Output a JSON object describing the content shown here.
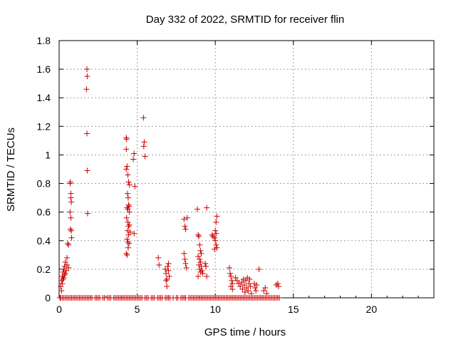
{
  "chart_data": {
    "type": "scatter",
    "title": "Day 332 of 2022, SRMTID for receiver flin",
    "xlabel": "GPS time / hours",
    "ylabel": "SRMTID / TECUs",
    "xlim": [
      0,
      24
    ],
    "ylim": [
      0,
      1.8
    ],
    "xticks": [
      0,
      5,
      10,
      15,
      20
    ],
    "xtick_labels": [
      "0",
      "5",
      "10",
      "15",
      "20"
    ],
    "yticks": [
      0,
      0.2,
      0.4,
      0.6,
      0.8,
      1,
      1.2,
      1.4,
      1.6,
      1.8
    ],
    "ytick_labels": [
      "0",
      "0.2",
      "0.4",
      "0.6",
      "0.8",
      "1",
      "1.2",
      "1.4",
      "1.6",
      "1.8"
    ],
    "grid": true,
    "marker": "+",
    "color": "#cc0000",
    "series": [
      {
        "name": "SRMTID",
        "points": [
          [
            0.1,
            0.08
          ],
          [
            0.15,
            0.12
          ],
          [
            0.2,
            0.15
          ],
          [
            0.2,
            0.1
          ],
          [
            0.25,
            0.18
          ],
          [
            0.3,
            0.2
          ],
          [
            0.3,
            0.14
          ],
          [
            0.35,
            0.22
          ],
          [
            0.4,
            0.17
          ],
          [
            0.4,
            0.25
          ],
          [
            0.45,
            0.19
          ],
          [
            0.5,
            0.23
          ],
          [
            0.5,
            0.28
          ],
          [
            0.55,
            0.38
          ],
          [
            0.6,
            0.37
          ],
          [
            0.6,
            0.21
          ],
          [
            0.15,
            0.05
          ],
          [
            0.25,
            0.13
          ],
          [
            0.35,
            0.16
          ],
          [
            0.7,
            0.8
          ],
          [
            0.72,
            0.81
          ],
          [
            0.75,
            0.73
          ],
          [
            0.75,
            0.7
          ],
          [
            0.78,
            0.67
          ],
          [
            0.7,
            0.6
          ],
          [
            0.75,
            0.56
          ],
          [
            0.72,
            0.48
          ],
          [
            0.78,
            0.47
          ],
          [
            0.8,
            0.42
          ],
          [
            1.78,
            1.6
          ],
          [
            1.8,
            1.55
          ],
          [
            1.75,
            1.46
          ],
          [
            1.78,
            1.15
          ],
          [
            1.8,
            0.89
          ],
          [
            1.82,
            0.59
          ],
          [
            4.3,
            1.12
          ],
          [
            4.32,
            1.11
          ],
          [
            4.3,
            1.04
          ],
          [
            4.35,
            0.92
          ],
          [
            4.3,
            0.9
          ],
          [
            4.4,
            0.86
          ],
          [
            4.45,
            0.81
          ],
          [
            4.5,
            0.79
          ],
          [
            4.38,
            0.73
          ],
          [
            4.42,
            0.7
          ],
          [
            4.45,
            0.65
          ],
          [
            4.48,
            0.64
          ],
          [
            4.35,
            0.63
          ],
          [
            4.4,
            0.62
          ],
          [
            4.5,
            0.6
          ],
          [
            4.32,
            0.56
          ],
          [
            4.4,
            0.53
          ],
          [
            4.45,
            0.5
          ],
          [
            4.5,
            0.51
          ],
          [
            4.38,
            0.47
          ],
          [
            4.45,
            0.44
          ],
          [
            4.35,
            0.41
          ],
          [
            4.4,
            0.39
          ],
          [
            4.48,
            0.38
          ],
          [
            4.42,
            0.35
          ],
          [
            4.3,
            0.31
          ],
          [
            4.35,
            0.3
          ],
          [
            4.55,
            0.46
          ],
          [
            4.8,
            1.01
          ],
          [
            4.75,
            0.97
          ],
          [
            4.85,
            0.78
          ],
          [
            4.8,
            0.45
          ],
          [
            5.4,
            1.26
          ],
          [
            5.45,
            1.09
          ],
          [
            5.42,
            1.06
          ],
          [
            5.5,
            0.99
          ],
          [
            6.35,
            0.28
          ],
          [
            6.4,
            0.23
          ],
          [
            6.8,
            0.2
          ],
          [
            6.85,
            0.17
          ],
          [
            6.9,
            0.13
          ],
          [
            6.95,
            0.22
          ],
          [
            7.0,
            0.24
          ],
          [
            7.05,
            0.15
          ],
          [
            6.9,
            0.08
          ],
          [
            7.0,
            0.19
          ],
          [
            6.85,
            0.12
          ],
          [
            8.0,
            0.55
          ],
          [
            8.05,
            0.5
          ],
          [
            8.1,
            0.48
          ],
          [
            8.0,
            0.31
          ],
          [
            8.05,
            0.27
          ],
          [
            8.1,
            0.24
          ],
          [
            8.15,
            0.21
          ],
          [
            8.2,
            0.56
          ],
          [
            8.85,
            0.62
          ],
          [
            8.9,
            0.44
          ],
          [
            8.95,
            0.43
          ],
          [
            9.0,
            0.37
          ],
          [
            9.05,
            0.33
          ],
          [
            9.1,
            0.31
          ],
          [
            8.9,
            0.29
          ],
          [
            9.0,
            0.27
          ],
          [
            9.05,
            0.25
          ],
          [
            8.95,
            0.23
          ],
          [
            9.1,
            0.22
          ],
          [
            9.0,
            0.2
          ],
          [
            9.05,
            0.18
          ],
          [
            9.15,
            0.19
          ],
          [
            9.2,
            0.17
          ],
          [
            8.9,
            0.15
          ],
          [
            9.35,
            0.24
          ],
          [
            9.4,
            0.22
          ],
          [
            9.45,
            0.63
          ],
          [
            9.45,
            0.15
          ],
          [
            9.8,
            0.44
          ],
          [
            9.85,
            0.43
          ],
          [
            9.95,
            0.42
          ],
          [
            10.0,
            0.47
          ],
          [
            10.05,
            0.45
          ],
          [
            10.1,
            0.57
          ],
          [
            10.05,
            0.53
          ],
          [
            10.0,
            0.4
          ],
          [
            10.05,
            0.37
          ],
          [
            10.1,
            0.35
          ],
          [
            9.95,
            0.34
          ],
          [
            10.9,
            0.21
          ],
          [
            10.95,
            0.17
          ],
          [
            11.0,
            0.15
          ],
          [
            11.05,
            0.12
          ],
          [
            11.1,
            0.1
          ],
          [
            11.0,
            0.08
          ],
          [
            11.1,
            0.06
          ],
          [
            11.3,
            0.14
          ],
          [
            11.4,
            0.12
          ],
          [
            11.5,
            0.1
          ],
          [
            11.6,
            0.08
          ],
          [
            11.7,
            0.11
          ],
          [
            11.75,
            0.06
          ],
          [
            11.8,
            0.13
          ],
          [
            11.85,
            0.09
          ],
          [
            11.9,
            0.04
          ],
          [
            11.95,
            0.12
          ],
          [
            12.0,
            0.07
          ],
          [
            12.05,
            0.14
          ],
          [
            12.1,
            0.05
          ],
          [
            12.15,
            0.1
          ],
          [
            12.2,
            0.13
          ],
          [
            12.25,
            0.08
          ],
          [
            12.3,
            0.03
          ],
          [
            12.5,
            0.1
          ],
          [
            12.55,
            0.07
          ],
          [
            12.6,
            0.05
          ],
          [
            12.65,
            0.09
          ],
          [
            12.8,
            0.2
          ],
          [
            13.1,
            0.05
          ],
          [
            13.2,
            0.07
          ],
          [
            13.3,
            0.03
          ],
          [
            13.9,
            0.09
          ],
          [
            14.0,
            0.1
          ],
          [
            14.05,
            0.08
          ],
          [
            0.05,
            0
          ],
          [
            0.1,
            0
          ],
          [
            0.2,
            0
          ],
          [
            0.3,
            0
          ],
          [
            0.4,
            0
          ],
          [
            0.5,
            0
          ],
          [
            0.6,
            0
          ],
          [
            0.7,
            0
          ],
          [
            0.8,
            0
          ],
          [
            0.9,
            0
          ],
          [
            1.0,
            0
          ],
          [
            1.1,
            0
          ],
          [
            1.2,
            0
          ],
          [
            1.3,
            0
          ],
          [
            1.4,
            0
          ],
          [
            1.5,
            0
          ],
          [
            1.6,
            0
          ],
          [
            1.7,
            0
          ],
          [
            1.8,
            0
          ],
          [
            1.9,
            0
          ],
          [
            2.0,
            0
          ],
          [
            2.1,
            0
          ],
          [
            2.3,
            0
          ],
          [
            2.4,
            0
          ],
          [
            2.5,
            0
          ],
          [
            2.6,
            0
          ],
          [
            2.8,
            0
          ],
          [
            2.9,
            0
          ],
          [
            3.1,
            0
          ],
          [
            3.2,
            0
          ],
          [
            3.3,
            0
          ],
          [
            3.5,
            0
          ],
          [
            3.6,
            0
          ],
          [
            3.7,
            0
          ],
          [
            3.8,
            0
          ],
          [
            3.9,
            0
          ],
          [
            4.0,
            0
          ],
          [
            4.1,
            0
          ],
          [
            4.2,
            0
          ],
          [
            4.3,
            0
          ],
          [
            4.4,
            0
          ],
          [
            4.5,
            0
          ],
          [
            4.6,
            0
          ],
          [
            4.7,
            0
          ],
          [
            4.8,
            0
          ],
          [
            4.9,
            0
          ],
          [
            5.0,
            0
          ],
          [
            5.1,
            0
          ],
          [
            5.2,
            0
          ],
          [
            5.3,
            0
          ],
          [
            5.5,
            0
          ],
          [
            5.6,
            0
          ],
          [
            5.7,
            0
          ],
          [
            5.9,
            0
          ],
          [
            6.0,
            0
          ],
          [
            6.1,
            0
          ],
          [
            6.3,
            0
          ],
          [
            6.4,
            0
          ],
          [
            6.5,
            0
          ],
          [
            6.6,
            0
          ],
          [
            6.8,
            0
          ],
          [
            6.9,
            0
          ],
          [
            7.0,
            0
          ],
          [
            7.1,
            0
          ],
          [
            7.3,
            0
          ],
          [
            7.5,
            0
          ],
          [
            7.6,
            0
          ],
          [
            7.8,
            0
          ],
          [
            7.9,
            0
          ],
          [
            8.0,
            0
          ],
          [
            8.1,
            0
          ],
          [
            8.3,
            0
          ],
          [
            8.4,
            0
          ],
          [
            8.5,
            0
          ],
          [
            8.6,
            0
          ],
          [
            8.7,
            0
          ],
          [
            8.8,
            0
          ],
          [
            8.9,
            0
          ],
          [
            9.0,
            0
          ],
          [
            9.1,
            0
          ],
          [
            9.2,
            0
          ],
          [
            9.3,
            0
          ],
          [
            9.4,
            0
          ],
          [
            9.5,
            0
          ],
          [
            9.6,
            0
          ],
          [
            9.7,
            0
          ],
          [
            9.8,
            0
          ],
          [
            9.9,
            0
          ],
          [
            10.0,
            0
          ],
          [
            10.1,
            0
          ],
          [
            10.2,
            0
          ],
          [
            10.3,
            0
          ],
          [
            10.4,
            0
          ],
          [
            10.5,
            0
          ],
          [
            10.6,
            0
          ],
          [
            10.7,
            0
          ],
          [
            10.8,
            0
          ],
          [
            10.9,
            0
          ],
          [
            11.0,
            0
          ],
          [
            11.1,
            0
          ],
          [
            11.2,
            0
          ],
          [
            11.3,
            0
          ],
          [
            11.4,
            0
          ],
          [
            11.5,
            0
          ],
          [
            11.6,
            0
          ],
          [
            11.7,
            0
          ],
          [
            11.8,
            0
          ],
          [
            11.9,
            0
          ],
          [
            12.0,
            0
          ],
          [
            12.1,
            0
          ],
          [
            12.2,
            0
          ],
          [
            12.3,
            0
          ],
          [
            12.4,
            0
          ],
          [
            12.5,
            0
          ],
          [
            12.6,
            0
          ],
          [
            12.7,
            0
          ],
          [
            12.8,
            0
          ],
          [
            12.9,
            0
          ],
          [
            13.0,
            0
          ],
          [
            13.1,
            0
          ],
          [
            13.2,
            0
          ],
          [
            13.3,
            0
          ],
          [
            13.4,
            0
          ],
          [
            13.5,
            0
          ],
          [
            13.6,
            0
          ],
          [
            13.7,
            0
          ],
          [
            13.8,
            0
          ],
          [
            13.9,
            0
          ],
          [
            14.0,
            0
          ],
          [
            14.1,
            0
          ]
        ]
      }
    ]
  }
}
